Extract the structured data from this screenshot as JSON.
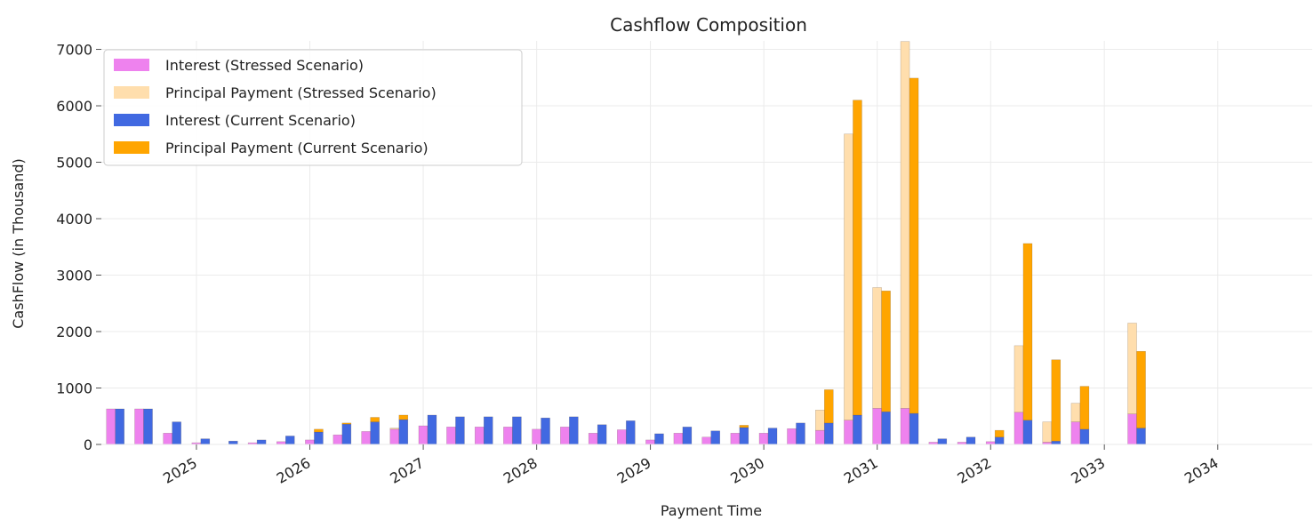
{
  "chart_data": {
    "type": "bar",
    "title": "Cashflow Composition",
    "xlabel": "Payment Time",
    "ylabel": "CashFlow (in Thousand)",
    "ylim": [
      0,
      7150
    ],
    "yticks": [
      0,
      1000,
      2000,
      3000,
      4000,
      5000,
      6000,
      7000
    ],
    "x_range": [
      "2024-03-01",
      "2034-11-01"
    ],
    "xticks": [
      {
        "label": "2025",
        "date": "2025-01-01"
      },
      {
        "label": "2026",
        "date": "2026-01-01"
      },
      {
        "label": "2027",
        "date": "2027-01-01"
      },
      {
        "label": "2028",
        "date": "2028-01-01"
      },
      {
        "label": "2029",
        "date": "2029-01-01"
      },
      {
        "label": "2030",
        "date": "2030-01-01"
      },
      {
        "label": "2031",
        "date": "2031-01-01"
      },
      {
        "label": "2032",
        "date": "2032-01-01"
      },
      {
        "label": "2033",
        "date": "2033-01-01"
      },
      {
        "label": "2034",
        "date": "2034-01-01"
      }
    ],
    "grid": true,
    "legend_position": "top-left",
    "stacked": true,
    "dates": [
      "2024-04-15",
      "2024-07-15",
      "2024-10-15",
      "2025-01-15",
      "2025-04-15",
      "2025-07-15",
      "2025-10-15",
      "2026-01-15",
      "2026-04-15",
      "2026-07-15",
      "2026-10-15",
      "2027-01-15",
      "2027-04-15",
      "2027-07-15",
      "2027-10-15",
      "2028-01-15",
      "2028-04-15",
      "2028-07-15",
      "2028-10-15",
      "2029-01-15",
      "2029-04-15",
      "2029-07-15",
      "2029-10-15",
      "2030-01-15",
      "2030-04-15",
      "2030-07-15",
      "2030-10-15",
      "2031-01-15",
      "2031-04-15",
      "2031-07-15",
      "2031-10-15",
      "2032-01-15",
      "2032-04-15",
      "2032-07-15",
      "2032-10-15",
      "2033-01-15",
      "2033-04-15"
    ],
    "scenarios": [
      {
        "name": "Stressed Scenario",
        "series": [
          {
            "name": "Interest (Stressed Scenario)",
            "color": "#ee82ee",
            "values": [
              630,
              630,
              200,
              30,
              0,
              30,
              50,
              80,
              170,
              230,
              270,
              330,
              310,
              310,
              310,
              270,
              310,
              200,
              260,
              80,
              200,
              130,
              200,
              200,
              280,
              250,
              430,
              640,
              640,
              40,
              40,
              50,
              570,
              40,
              400,
              0,
              540
            ]
          },
          {
            "name": "Principal Payment (Stressed Scenario)",
            "color": "#ffdead",
            "values": [
              0,
              0,
              0,
              0,
              0,
              0,
              0,
              0,
              0,
              0,
              20,
              0,
              0,
              0,
              0,
              0,
              0,
              0,
              0,
              0,
              0,
              0,
              0,
              0,
              0,
              360,
              5070,
              2140,
              6500,
              0,
              0,
              0,
              1180,
              360,
              330,
              0,
              1610
            ]
          }
        ]
      },
      {
        "name": "Current Scenario",
        "series": [
          {
            "name": "Interest (Current Scenario)",
            "color": "#4169e1",
            "values": [
              630,
              630,
              400,
              100,
              60,
              80,
              150,
              220,
              360,
              400,
              440,
              520,
              490,
              490,
              490,
              470,
              490,
              350,
              420,
              190,
              310,
              240,
              300,
              290,
              380,
              380,
              520,
              580,
              550,
              100,
              130,
              130,
              430,
              60,
              270,
              0,
              290
            ]
          },
          {
            "name": "Principal Payment (Current Scenario)",
            "color": "#ffa500",
            "values": [
              0,
              0,
              0,
              0,
              0,
              0,
              0,
              50,
              20,
              80,
              80,
              0,
              0,
              0,
              0,
              0,
              0,
              0,
              0,
              0,
              0,
              0,
              40,
              0,
              0,
              590,
              5580,
              2140,
              5940,
              0,
              0,
              120,
              3130,
              1440,
              760,
              0,
              1360
            ]
          }
        ]
      }
    ]
  }
}
